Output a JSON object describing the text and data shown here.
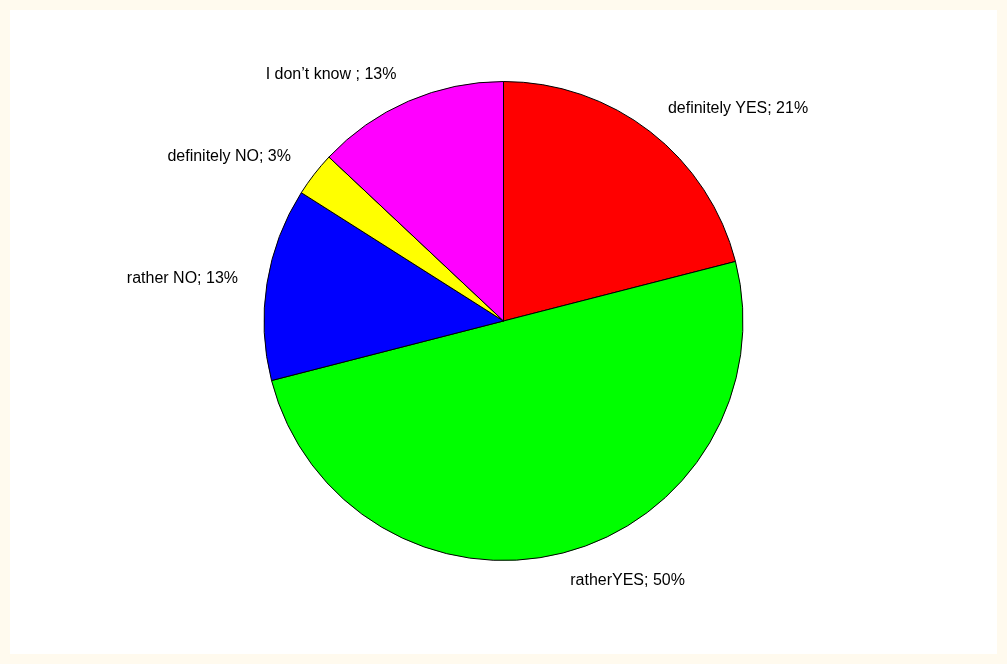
{
  "chart_data": {
    "type": "pie",
    "categories": [
      "definitely YES",
      "ratherYES",
      "rather NO",
      "definitely NO",
      "I don’t know "
    ],
    "values": [
      21,
      50,
      13,
      3,
      13
    ],
    "value_labels": [
      "21%",
      "50%",
      "13%",
      "3%",
      "13%"
    ],
    "colors": [
      "#ff0000",
      "#00ff00",
      "#0000ff",
      "#ffff00",
      "#ff00ff"
    ],
    "legend": false
  }
}
